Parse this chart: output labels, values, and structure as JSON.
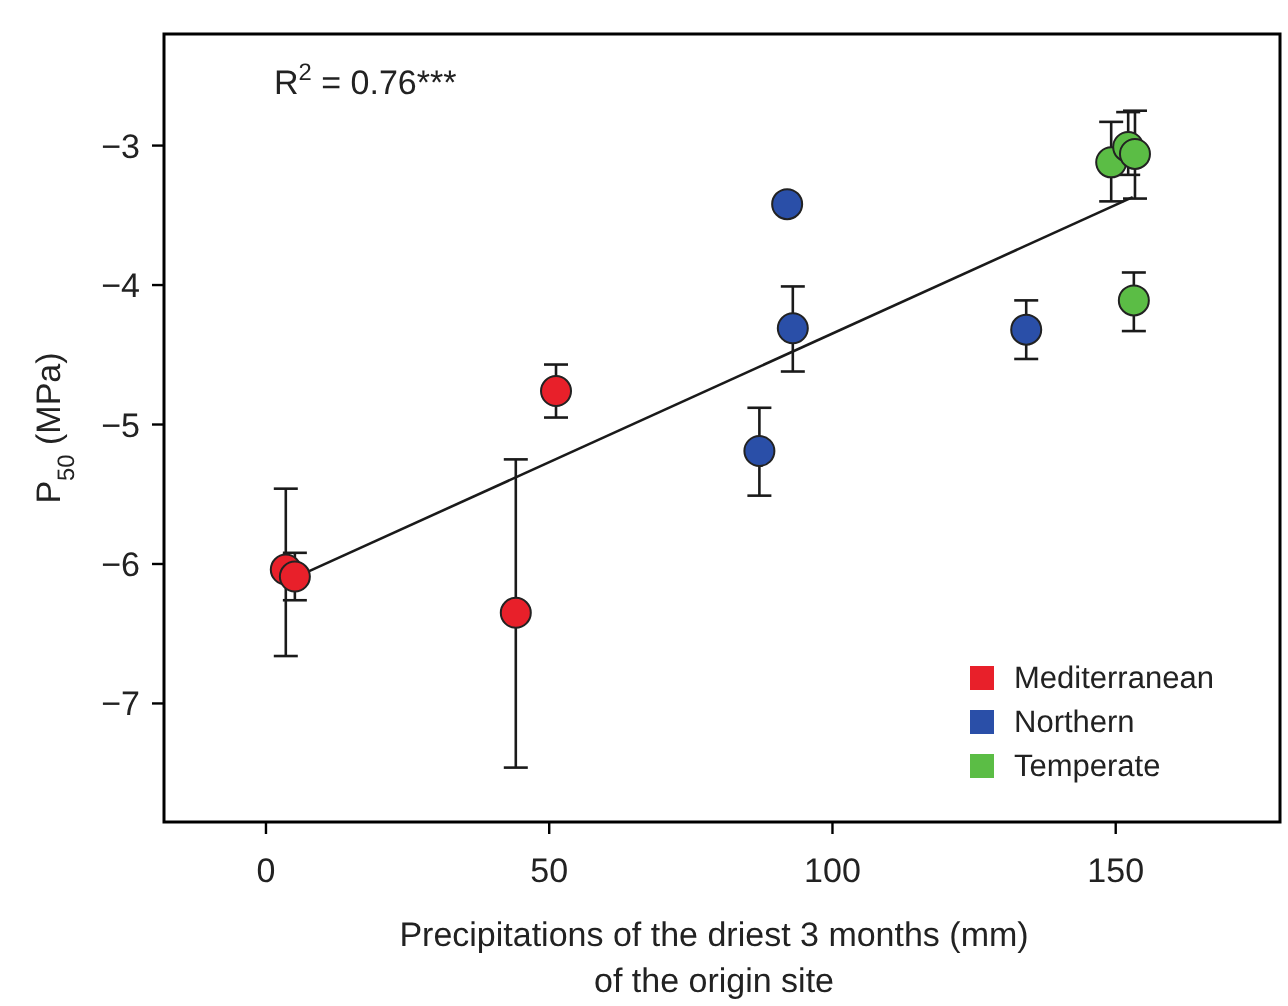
{
  "chart_data": {
    "type": "scatter",
    "xlabel": "Precipitations of the driest 3 months (mm) of the origin site",
    "ylabel": "P$_{50}$ (MPa)",
    "annotations": [
      "R$^{2}$ = 0.76***"
    ],
    "xlim": [
      -18,
      179
    ],
    "xticks": [
      0,
      50,
      100,
      150
    ],
    "ylim": [
      -7.85,
      -2.2
    ],
    "yticks": [
      -3,
      -4,
      -5,
      -6,
      -7
    ],
    "grid": false,
    "legend": "bottom right",
    "marker": "circle",
    "series": [
      {
        "type": "line",
        "x": [
          5,
          153
        ],
        "values": [
          -6.1,
          -3.37
        ],
        "color": "#1a1a1a",
        "line_style": "solid",
        "marker": "none"
      },
      {
        "name": "Mediterranean",
        "color": "#e8202a",
        "x": [
          3.5,
          5.1,
          44.1,
          51.2
        ],
        "values": [
          -6.04,
          -6.09,
          -6.35,
          -4.76
        ],
        "errors": [
          [
            -6.66,
            -5.46
          ],
          [
            -6.26,
            -5.92
          ],
          [
            -7.46,
            -5.25
          ],
          [
            -4.95,
            -4.57
          ]
        ]
      },
      {
        "name": "Northern",
        "color": "#2a4fa8",
        "x": [
          92,
          93,
          87.1,
          134.2
        ],
        "values": [
          -3.42,
          -4.31,
          -5.19,
          -4.32
        ],
        "errors": [
          null,
          [
            -4.62,
            -4.01
          ],
          [
            -5.51,
            -4.88
          ],
          [
            -4.53,
            -4.11
          ]
        ]
      },
      {
        "name": "Temperate",
        "color": "#5bbd45",
        "x": [
          149.2,
          152.2,
          153.4,
          153.2
        ],
        "values": [
          -3.12,
          -3.01,
          -3.06,
          -4.11
        ],
        "errors": [
          [
            -3.4,
            -2.83
          ],
          [
            -3.21,
            -2.76
          ],
          [
            -3.38,
            -2.75
          ],
          [
            -4.33,
            -3.91
          ]
        ]
      }
    ]
  }
}
